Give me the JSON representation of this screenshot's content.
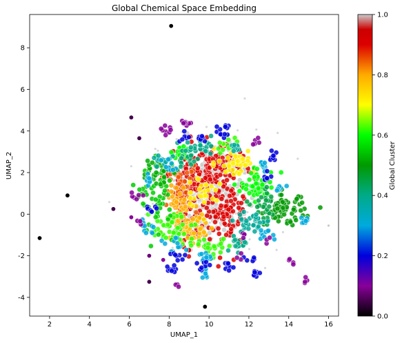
{
  "chart_data": {
    "type": "scatter",
    "title": "Global Chemical Space Embedding",
    "xlabel": "UMAP_1",
    "ylabel": "UMAP_2",
    "xlim": [
      1.0,
      16.5
    ],
    "ylim": [
      -4.9,
      9.6
    ],
    "xticks": [
      2,
      4,
      6,
      8,
      10,
      12,
      14,
      16
    ],
    "yticks": [
      -4,
      -2,
      0,
      2,
      4,
      6,
      8
    ],
    "grid": false,
    "colorbar": {
      "label": "Global Cluster",
      "range": [
        0.0,
        1.0
      ],
      "ticks": [
        0.0,
        0.2,
        0.4,
        0.6,
        0.8,
        1.0
      ],
      "tick_labels": [
        "0.0",
        "0.2",
        "0.4",
        "0.6",
        "0.8",
        "1.0"
      ],
      "colormap": "nipy_spectral",
      "stops": [
        {
          "v": 0.0,
          "c": "#000000"
        },
        {
          "v": 0.1,
          "c": "#880099"
        },
        {
          "v": 0.2,
          "c": "#0000dd"
        },
        {
          "v": 0.3,
          "c": "#00aadd"
        },
        {
          "v": 0.4,
          "c": "#00aa88"
        },
        {
          "v": 0.5,
          "c": "#009900"
        },
        {
          "v": 0.6,
          "c": "#00ff00"
        },
        {
          "v": 0.7,
          "c": "#ffff00"
        },
        {
          "v": 0.8,
          "c": "#ffaa00"
        },
        {
          "v": 0.9,
          "c": "#dd0000"
        },
        {
          "v": 0.95,
          "c": "#cc0000"
        },
        {
          "v": 1.0,
          "c": "#cccccc"
        }
      ]
    },
    "noise_color": "#c8c8c8",
    "clusters": [
      {
        "cx": 10.0,
        "cy": 0.9,
        "sx": 0.9,
        "sy": 1.1,
        "n": 260,
        "value": 1.0
      },
      {
        "cx": 9.4,
        "cy": 1.7,
        "sx": 0.7,
        "sy": 0.6,
        "n": 120,
        "value": 0.9
      },
      {
        "cx": 11.0,
        "cy": 0.2,
        "sx": 0.45,
        "sy": 0.9,
        "n": 90,
        "value": 0.9
      },
      {
        "cx": 10.4,
        "cy": 2.3,
        "sx": 0.9,
        "sy": 0.5,
        "n": 60,
        "value": 0.9
      },
      {
        "cx": 9.2,
        "cy": -0.6,
        "sx": 0.5,
        "sy": 0.6,
        "n": 60,
        "value": 0.92
      },
      {
        "cx": 8.6,
        "cy": 1.3,
        "sx": 0.4,
        "sy": 0.6,
        "n": 55,
        "value": 0.85
      },
      {
        "cx": 8.5,
        "cy": 0.2,
        "sx": 0.4,
        "sy": 0.6,
        "n": 50,
        "value": 0.8
      },
      {
        "cx": 9.3,
        "cy": -0.7,
        "sx": 0.5,
        "sy": 0.4,
        "n": 45,
        "value": 0.78
      },
      {
        "cx": 11.3,
        "cy": 2.5,
        "sx": 0.5,
        "sy": 0.3,
        "n": 45,
        "value": 0.72
      },
      {
        "cx": 9.7,
        "cy": 1.1,
        "sx": 0.4,
        "sy": 0.4,
        "n": 30,
        "value": 0.72
      },
      {
        "cx": 12.5,
        "cy": 1.4,
        "sx": 0.45,
        "sy": 0.35,
        "n": 55,
        "value": 0.6
      },
      {
        "cx": 8.2,
        "cy": -0.8,
        "sx": 0.6,
        "sy": 0.5,
        "n": 50,
        "value": 0.62
      },
      {
        "cx": 7.4,
        "cy": 0.7,
        "sx": 0.4,
        "sy": 0.8,
        "n": 55,
        "value": 0.55
      },
      {
        "cx": 7.3,
        "cy": 2.0,
        "sx": 0.35,
        "sy": 0.3,
        "n": 35,
        "value": 0.52
      },
      {
        "cx": 8.6,
        "cy": 3.0,
        "sx": 0.3,
        "sy": 0.15,
        "n": 20,
        "value": 0.6
      },
      {
        "cx": 10.2,
        "cy": -1.6,
        "sx": 0.4,
        "sy": 0.2,
        "n": 25,
        "value": 0.62
      },
      {
        "cx": 10.9,
        "cy": 3.3,
        "sx": 0.3,
        "sy": 0.2,
        "n": 15,
        "value": 0.62
      },
      {
        "cx": 13.8,
        "cy": 0.2,
        "sx": 0.5,
        "sy": 0.35,
        "n": 70,
        "value": 0.5
      },
      {
        "cx": 12.8,
        "cy": 0.3,
        "sx": 0.3,
        "sy": 0.4,
        "n": 30,
        "value": 0.45
      },
      {
        "cx": 9.5,
        "cy": 3.1,
        "sx": 0.5,
        "sy": 0.2,
        "n": 25,
        "value": 0.4
      },
      {
        "cx": 12.1,
        "cy": -0.4,
        "sx": 0.4,
        "sy": 0.3,
        "n": 35,
        "value": 0.38
      },
      {
        "cx": 11.5,
        "cy": -1.4,
        "sx": 0.25,
        "sy": 0.2,
        "n": 15,
        "value": 0.4
      },
      {
        "cx": 11.3,
        "cy": 3.2,
        "sx": 0.2,
        "sy": 0.15,
        "n": 10,
        "value": 0.38
      },
      {
        "cx": 7.7,
        "cy": 2.5,
        "sx": 0.25,
        "sy": 0.2,
        "n": 15,
        "value": 0.38
      },
      {
        "cx": 8.9,
        "cy": 2.5,
        "sx": 0.3,
        "sy": 0.2,
        "n": 15,
        "value": 0.42
      },
      {
        "cx": 9.6,
        "cy": -2.1,
        "sx": 0.25,
        "sy": 0.15,
        "n": 12,
        "value": 0.3
      },
      {
        "cx": 9.8,
        "cy": -2.7,
        "sx": 0.15,
        "sy": 0.2,
        "n": 10,
        "value": 0.3
      },
      {
        "cx": 12.8,
        "cy": -0.9,
        "sx": 0.2,
        "sy": 0.15,
        "n": 10,
        "value": 0.3
      },
      {
        "cx": 12.8,
        "cy": 2.3,
        "sx": 0.2,
        "sy": 0.15,
        "n": 10,
        "value": 0.3
      },
      {
        "cx": 8.3,
        "cy": -1.5,
        "sx": 0.3,
        "sy": 0.15,
        "n": 12,
        "value": 0.3
      },
      {
        "cx": 6.9,
        "cy": -0.6,
        "sx": 0.2,
        "sy": 0.2,
        "n": 10,
        "value": 0.3
      },
      {
        "cx": 7.0,
        "cy": 1.6,
        "sx": 0.15,
        "sy": 0.15,
        "n": 8,
        "value": 0.3
      },
      {
        "cx": 14.9,
        "cy": -0.3,
        "sx": 0.2,
        "sy": 0.08,
        "n": 10,
        "value": 0.3
      },
      {
        "cx": 13.6,
        "cy": 1.2,
        "sx": 0.2,
        "sy": 0.1,
        "n": 8,
        "value": 0.3
      },
      {
        "cx": 7.9,
        "cy": 2.3,
        "sx": 0.2,
        "sy": 0.2,
        "n": 8,
        "value": 0.3
      },
      {
        "cx": 8.4,
        "cy": -2.0,
        "sx": 0.2,
        "sy": 0.1,
        "n": 8,
        "value": 0.2
      },
      {
        "cx": 8.2,
        "cy": -2.6,
        "sx": 0.15,
        "sy": 0.15,
        "n": 8,
        "value": 0.2
      },
      {
        "cx": 9.7,
        "cy": -2.4,
        "sx": 0.15,
        "sy": 0.15,
        "n": 8,
        "value": 0.2
      },
      {
        "cx": 11.0,
        "cy": -2.5,
        "sx": 0.15,
        "sy": 0.15,
        "n": 8,
        "value": 0.2
      },
      {
        "cx": 12.3,
        "cy": -2.9,
        "sx": 0.15,
        "sy": 0.1,
        "n": 8,
        "value": 0.2
      },
      {
        "cx": 12.2,
        "cy": -2.1,
        "sx": 0.15,
        "sy": 0.1,
        "n": 6,
        "value": 0.2
      },
      {
        "cx": 13.3,
        "cy": 2.8,
        "sx": 0.15,
        "sy": 0.15,
        "n": 8,
        "value": 0.2
      },
      {
        "cx": 12.9,
        "cy": 1.8,
        "sx": 0.15,
        "sy": 0.15,
        "n": 6,
        "value": 0.2
      },
      {
        "cx": 7.1,
        "cy": 0.3,
        "sx": 0.15,
        "sy": 0.15,
        "n": 6,
        "value": 0.2
      },
      {
        "cx": 8.7,
        "cy": 3.6,
        "sx": 0.15,
        "sy": 0.15,
        "n": 6,
        "value": 0.2
      },
      {
        "cx": 9.7,
        "cy": 3.8,
        "sx": 0.15,
        "sy": 0.15,
        "n": 6,
        "value": 0.2
      },
      {
        "cx": 10.6,
        "cy": 4.0,
        "sx": 0.15,
        "sy": 0.3,
        "n": 8,
        "value": 0.2
      },
      {
        "cx": 11.0,
        "cy": 4.3,
        "sx": 0.1,
        "sy": 0.1,
        "n": 4,
        "value": 0.2
      },
      {
        "cx": 8.9,
        "cy": 4.3,
        "sx": 0.15,
        "sy": 0.15,
        "n": 8,
        "value": 0.1
      },
      {
        "cx": 7.8,
        "cy": 4.1,
        "sx": 0.15,
        "sy": 0.15,
        "n": 8,
        "value": 0.1
      },
      {
        "cx": 6.3,
        "cy": 0.9,
        "sx": 0.3,
        "sy": 0.1,
        "n": 6,
        "value": 0.1
      },
      {
        "cx": 6.5,
        "cy": -0.4,
        "sx": 0.15,
        "sy": 0.1,
        "n": 4,
        "value": 0.1
      },
      {
        "cx": 11.7,
        "cy": -1.0,
        "sx": 0.15,
        "sy": 0.1,
        "n": 4,
        "value": 0.1
      },
      {
        "cx": 14.1,
        "cy": -2.3,
        "sx": 0.1,
        "sy": 0.1,
        "n": 4,
        "value": 0.1
      },
      {
        "cx": 14.9,
        "cy": -3.2,
        "sx": 0.1,
        "sy": 0.1,
        "n": 4,
        "value": 0.1
      },
      {
        "cx": 12.4,
        "cy": 3.5,
        "sx": 0.15,
        "sy": 0.1,
        "n": 5,
        "value": 0.1
      },
      {
        "cx": 11.6,
        "cy": -2.1,
        "sx": 0.1,
        "sy": 0.1,
        "n": 3,
        "value": 0.1
      },
      {
        "cx": 8.4,
        "cy": -3.4,
        "sx": 0.1,
        "sy": 0.1,
        "n": 3,
        "value": 0.1
      },
      {
        "cx": 12.9,
        "cy": -1.3,
        "sx": 0.1,
        "sy": 0.1,
        "n": 3,
        "value": 0.1
      }
    ],
    "noise_points": {
      "cx": 10.2,
      "cy": 0.8,
      "sx": 1.6,
      "sy": 1.6,
      "n": 140
    },
    "outliers": [
      {
        "x": 8.1,
        "y": 9.05,
        "value": 0.0
      },
      {
        "x": 1.5,
        "y": -1.15,
        "value": 0.0
      },
      {
        "x": 2.9,
        "y": 0.9,
        "value": 0.0
      },
      {
        "x": 5.2,
        "y": 0.25,
        "value": 0.05
      },
      {
        "x": 6.1,
        "y": 4.65,
        "value": 0.05
      },
      {
        "x": 6.5,
        "y": 3.65,
        "value": 0.05
      },
      {
        "x": 9.8,
        "y": -4.45,
        "value": 0.0
      },
      {
        "x": 7.0,
        "y": -3.25,
        "value": 0.05
      },
      {
        "x": 7.0,
        "y": -2.0,
        "value": 0.08
      },
      {
        "x": 7.7,
        "y": -2.2,
        "value": 0.1
      },
      {
        "x": 6.1,
        "y": -0.15,
        "value": 0.1
      },
      {
        "x": 16.0,
        "y": -0.55,
        "value": 1.0
      }
    ]
  }
}
